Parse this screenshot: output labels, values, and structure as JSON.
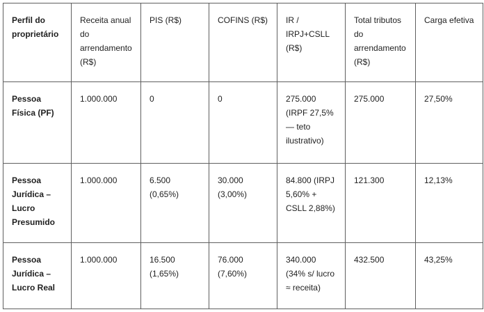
{
  "table": {
    "headers": [
      "Perfil do proprietário",
      "Receita anual do arrendamento (R$)",
      "PIS (R$)",
      "COFINS (R$)",
      "IR / IRPJ+CSLL (R$)",
      "Total tributos do arrendamento (R$)",
      "Carga efetiva"
    ],
    "rows": [
      [
        "Pessoa Física (PF)",
        "1.000.000",
        "0",
        "0",
        "275.000 (IRPF 27,5% — teto ilustrativo)",
        "275.000",
        "27,50%"
      ],
      [
        "Pessoa Jurídica – Lucro Presumido",
        "1.000.000",
        "6.500 (0,65%)",
        "30.000 (3,00%)",
        "84.800 (IRPJ 5,60% + CSLL 2,88%)",
        "121.300",
        "12,13%"
      ],
      [
        "Pessoa Jurídica – Lucro Real",
        "1.000.000",
        "16.500 (1,65%)",
        "76.000 (7,60%)",
        "340.000 (34% s/ lucro ≈ receita)",
        "432.500",
        "43,25%"
      ]
    ]
  }
}
